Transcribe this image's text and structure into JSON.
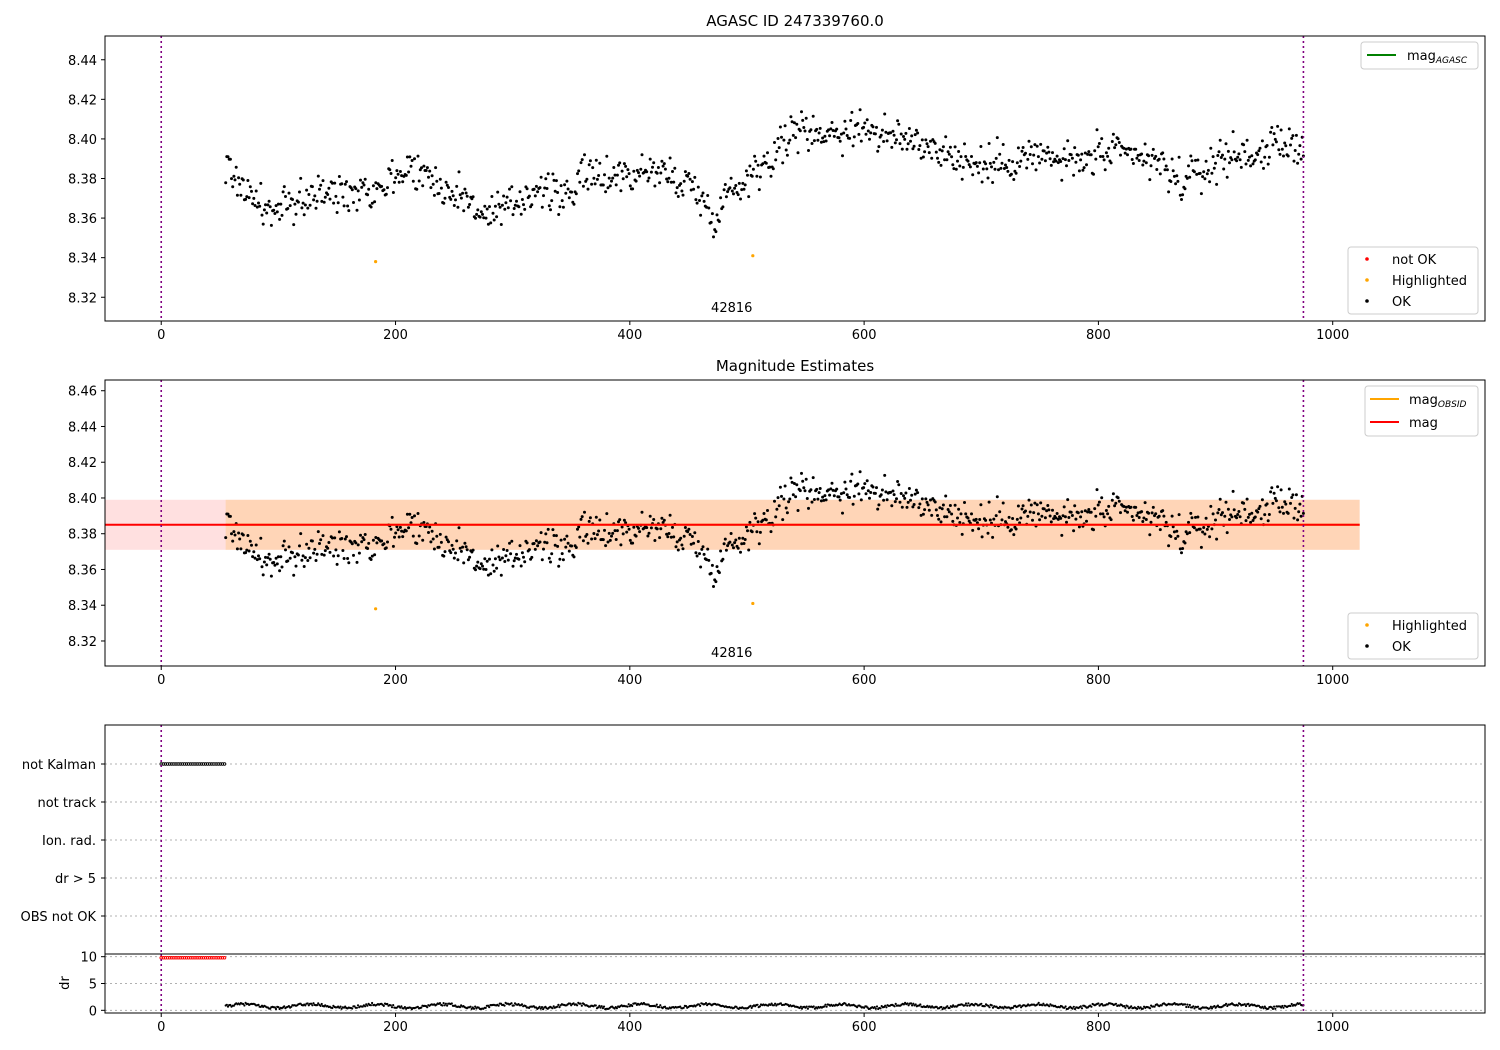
{
  "chart_data": [
    {
      "type": "scatter",
      "title": "AGASC ID 247339760.0",
      "xlim": [
        -48,
        1130
      ],
      "ylim": [
        8.308,
        8.452
      ],
      "xticks": [
        0,
        200,
        400,
        600,
        800,
        1000
      ],
      "yticks": [
        8.32,
        8.34,
        8.36,
        8.38,
        8.4,
        8.42,
        8.44
      ],
      "vlines": [
        0,
        975
      ],
      "obsid_label": "42816",
      "obsid_label_x": 487,
      "ok_trend": [
        [
          55,
          8.387
        ],
        [
          75,
          8.372
        ],
        [
          95,
          8.362
        ],
        [
          115,
          8.368
        ],
        [
          130,
          8.372
        ],
        [
          150,
          8.372
        ],
        [
          170,
          8.376
        ],
        [
          185,
          8.375
        ],
        [
          200,
          8.382
        ],
        [
          215,
          8.386
        ],
        [
          230,
          8.38
        ],
        [
          245,
          8.374
        ],
        [
          260,
          8.37
        ],
        [
          280,
          8.36
        ],
        [
          300,
          8.366
        ],
        [
          320,
          8.376
        ],
        [
          340,
          8.37
        ],
        [
          360,
          8.38
        ],
        [
          380,
          8.382
        ],
        [
          400,
          8.382
        ],
        [
          420,
          8.384
        ],
        [
          440,
          8.38
        ],
        [
          455,
          8.376
        ],
        [
          470,
          8.36
        ],
        [
          480,
          8.37
        ],
        [
          495,
          8.378
        ],
        [
          510,
          8.386
        ],
        [
          525,
          8.394
        ],
        [
          540,
          8.404
        ],
        [
          560,
          8.404
        ],
        [
          580,
          8.403
        ],
        [
          600,
          8.407
        ],
        [
          620,
          8.4
        ],
        [
          640,
          8.4
        ],
        [
          660,
          8.396
        ],
        [
          680,
          8.39
        ],
        [
          700,
          8.386
        ],
        [
          720,
          8.388
        ],
        [
          740,
          8.392
        ],
        [
          760,
          8.39
        ],
        [
          780,
          8.388
        ],
        [
          800,
          8.392
        ],
        [
          820,
          8.392
        ],
        [
          840,
          8.39
        ],
        [
          855,
          8.386
        ],
        [
          870,
          8.378
        ],
        [
          890,
          8.384
        ],
        [
          910,
          8.392
        ],
        [
          930,
          8.392
        ],
        [
          950,
          8.396
        ],
        [
          975,
          8.396
        ]
      ],
      "ok_scatter": 0.0075,
      "ok_count": 920,
      "ok_xrange": [
        55,
        975
      ],
      "highlighted": [
        [
          183,
          8.338
        ],
        [
          505,
          8.341
        ]
      ],
      "not_ok": [],
      "legend_lines": [
        {
          "label": "mag",
          "sub": "AGASC",
          "color": "#008000"
        }
      ],
      "legend_points": [
        {
          "label": "not OK",
          "color": "#ff0000"
        },
        {
          "label": "Highlighted",
          "color": "#ffa500"
        },
        {
          "label": "OK",
          "color": "#000000"
        }
      ]
    },
    {
      "type": "scatter",
      "title": "Magnitude Estimates",
      "xlim": [
        -48,
        1130
      ],
      "ylim": [
        8.306,
        8.466
      ],
      "xticks": [
        0,
        200,
        400,
        600,
        800,
        1000
      ],
      "yticks": [
        8.32,
        8.34,
        8.36,
        8.38,
        8.4,
        8.42,
        8.44,
        8.46
      ],
      "vlines": [
        0,
        975
      ],
      "obsid_label": "42816",
      "obsid_label_x": 487,
      "mag": 8.385,
      "mag_band": [
        8.371,
        8.399
      ],
      "mag_line_xrange": [
        -48,
        1023
      ],
      "mag_obsid": 8.385,
      "mag_obsid_band": [
        8.371,
        8.399
      ],
      "mag_obsid_xrange": [
        55,
        1023
      ],
      "highlighted": [
        [
          183,
          8.338
        ],
        [
          505,
          8.341
        ]
      ],
      "legend_lines": [
        {
          "label": "mag",
          "sub": "OBSID",
          "color": "#ffa500"
        },
        {
          "label": "mag",
          "sub": "",
          "color": "#ff0000"
        }
      ],
      "legend_points": [
        {
          "label": "Highlighted",
          "color": "#ffa500"
        },
        {
          "label": "OK",
          "color": "#000000"
        }
      ]
    },
    {
      "type": "scatter",
      "xlim": [
        -48,
        1130
      ],
      "flag_categories": [
        "not Kalman",
        "not track",
        "Ion. rad.",
        "dr > 5",
        "OBS not OK"
      ],
      "flag_points": [
        {
          "category": "not Kalman",
          "x_range": [
            0,
            55
          ]
        }
      ],
      "vlines": [
        0,
        975
      ]
    },
    {
      "type": "scatter",
      "ylabel": "dr",
      "xlim": [
        -48,
        1130
      ],
      "ylim": [
        -0.5,
        10.5
      ],
      "xticks": [
        0,
        200,
        400,
        600,
        800,
        1000
      ],
      "yticks": [
        0,
        5,
        10
      ],
      "vlines": [
        0,
        975
      ],
      "red_points": {
        "x_range": [
          0,
          55
        ],
        "y": 9.8
      },
      "black_points": {
        "x_range": [
          55,
          975
        ],
        "baseline": 0.8
      }
    }
  ]
}
